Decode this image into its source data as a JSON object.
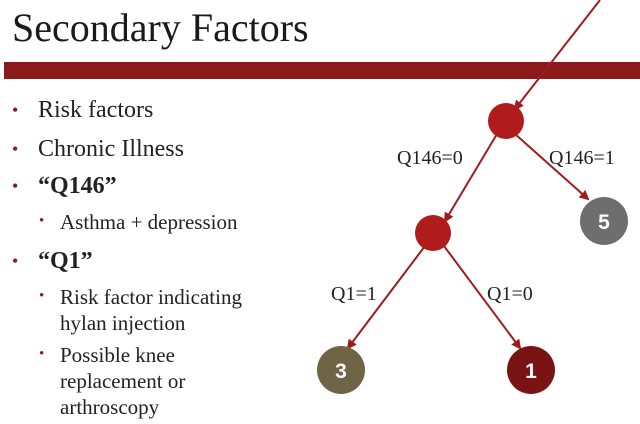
{
  "slide": {
    "title": "Secondary Factors"
  },
  "bullets": {
    "b1": "Risk factors",
    "b2": "Chronic Illness",
    "b3": "“Q146”",
    "b3_sub1": "Asthma + depression",
    "b4": "“Q1”",
    "b4_sub1": "Risk factor indicating hylan injection",
    "b4_sub2": "Possible knee replacement or arthroscopy",
    "marker": "•"
  },
  "tree": {
    "edges": {
      "q146_0": "Q146=0",
      "q146_1": "Q146=1",
      "q1_1": "Q1=1",
      "q1_0": "Q1=0"
    },
    "leaves": {
      "leaf_5": "5",
      "leaf_3": "3",
      "leaf_1": "1"
    }
  },
  "colors": {
    "accent_bar": "#8c1a1a",
    "decision_node": "#b01c1c",
    "edge_line": "#a01c1c",
    "leaf_5": "#6e6e6e",
    "leaf_3": "#6f6445",
    "leaf_1": "#7a1414"
  }
}
